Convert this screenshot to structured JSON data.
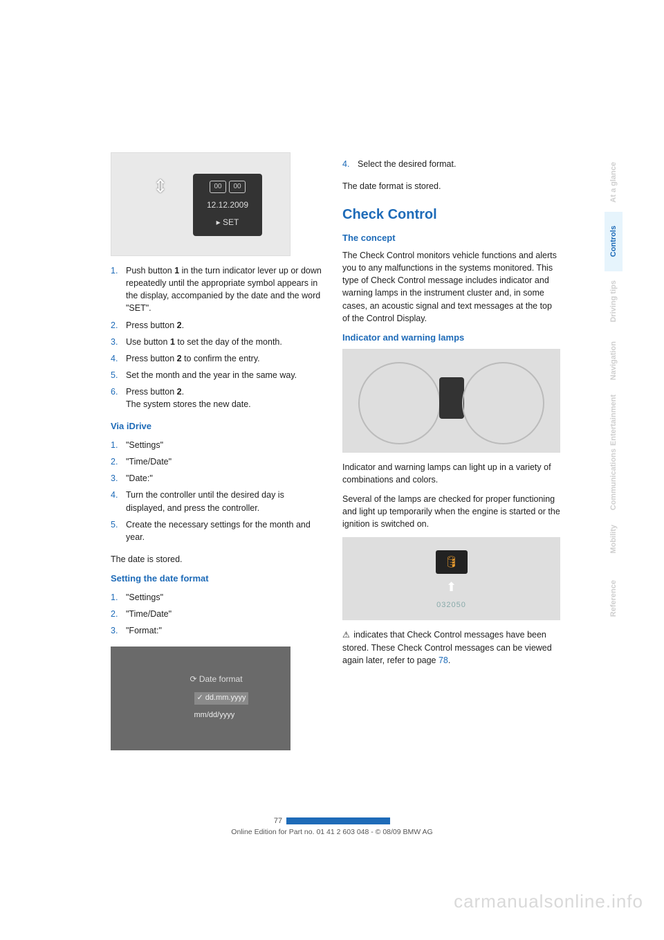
{
  "tabs": [
    {
      "label": "At a glance",
      "current": false
    },
    {
      "label": "Controls",
      "current": true
    },
    {
      "label": "Driving tips",
      "current": false
    },
    {
      "label": "Navigation",
      "current": false
    },
    {
      "label": "Entertainment",
      "current": false
    },
    {
      "label": "Communications",
      "current": false
    },
    {
      "label": "Mobility",
      "current": false
    },
    {
      "label": "Reference",
      "current": false
    }
  ],
  "fig_lever": {
    "dig": "00",
    "date": "12.12.2009",
    "set": "▸  SET"
  },
  "left": {
    "list1": [
      {
        "n": "1.",
        "t": "Push button 1 in the turn indicator lever up or down repeatedly until the appropriate symbol appears in the display, accompanied by the date and the word \"SET\"."
      },
      {
        "n": "2.",
        "t": "Press button 2."
      },
      {
        "n": "3.",
        "t": "Use button 1 to set the day of the month."
      },
      {
        "n": "4.",
        "t": "Press button 2 to confirm the entry."
      },
      {
        "n": "5.",
        "t": "Set the month and the year in the same way."
      },
      {
        "n": "6.",
        "t": "Press button 2.\nThe system stores the new date."
      }
    ],
    "h_idrive": "Via iDrive",
    "list2": [
      {
        "n": "1.",
        "t": "\"Settings\""
      },
      {
        "n": "2.",
        "t": "\"Time/Date\""
      },
      {
        "n": "3.",
        "t": "\"Date:\""
      },
      {
        "n": "4.",
        "t": "Turn the controller until the desired day is displayed, and press the controller."
      },
      {
        "n": "5.",
        "t": "Create the necessary settings for the month and year."
      }
    ],
    "stored": "The date is stored.",
    "h_format": "Setting the date format",
    "list3": [
      {
        "n": "1.",
        "t": "\"Settings\""
      },
      {
        "n": "2.",
        "t": "\"Time/Date\""
      },
      {
        "n": "3.",
        "t": "\"Format:\""
      }
    ]
  },
  "fig_format": {
    "hdr": "⟳ Date format",
    "opt1": "✓ dd.mm.yyyy",
    "opt2": "mm/dd/yyyy"
  },
  "right": {
    "list4": [
      {
        "n": "4.",
        "t": "Select the desired format."
      }
    ],
    "stored2": "The date format is stored.",
    "h_check": "Check Control",
    "h_concept": "The concept",
    "concept_p": "The Check Control monitors vehicle functions and alerts you to any malfunctions in the systems monitored. This type of Check Control message includes indicator and warning lamps in the instrument cluster and, in some cases, an acoustic signal and text messages at the top of the Control Display.",
    "h_ind": "Indicator and warning lamps",
    "ind_p1": "Indicator and warning lamps can light up in a variety of combinations and colors.",
    "ind_p2": "Several of the lamps are checked for proper functioning and light up temporarily when the engine is started or the ignition is switched on.",
    "warn_p_pre": "⚠ indicates that Check Control messages have been stored. These Check Control messages can be viewed again later, refer to page ",
    "warn_p_link": "78",
    "warn_p_post": "."
  },
  "fig_cluster": {
    "odo": "032050"
  },
  "footer": {
    "page": "77",
    "line": "Online Edition for Part no. 01 41 2 603 048 - © 08/09 BMW AG"
  },
  "watermark": "carmanualsonline.info"
}
